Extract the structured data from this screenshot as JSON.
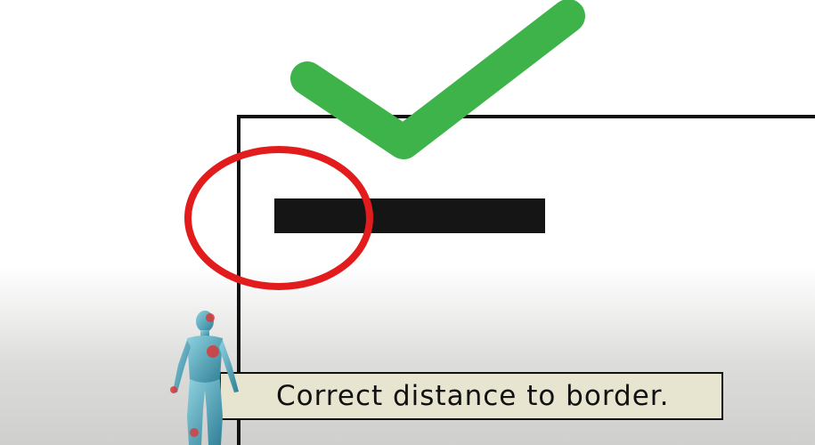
{
  "caption": {
    "text": "Correct distance to border."
  },
  "colors": {
    "checkmark": "#3db34a",
    "highlight_circle": "#e21c1c",
    "border_line": "#111111",
    "bar": "#151515",
    "caption_background": "#e7e4cf",
    "figure_skin": "#5fb3c8"
  },
  "icons": {
    "checkmark": "checkmark-icon",
    "highlight": "highlight-circle",
    "figure": "human-anatomy-figure"
  }
}
